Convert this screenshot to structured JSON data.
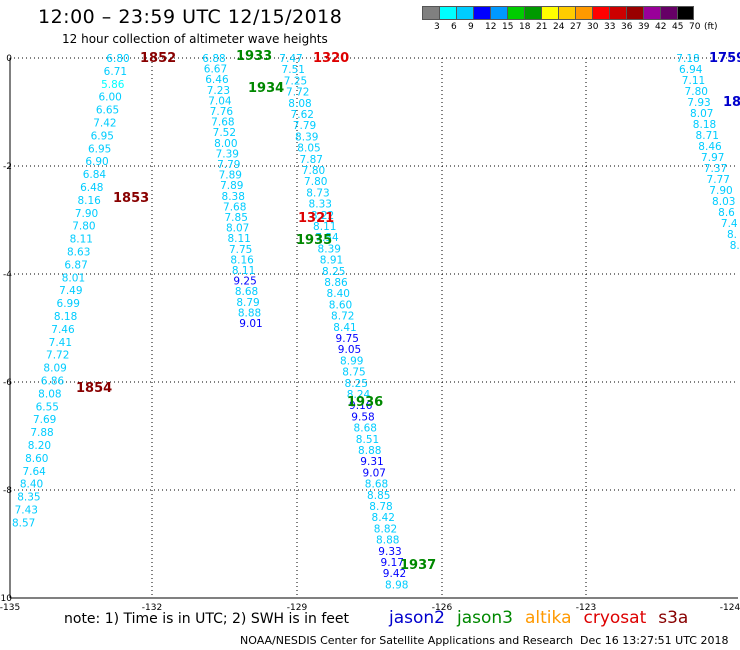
{
  "header": {
    "title": "12:00 – 23:59 UTC 12/15/2018",
    "subtitle": "12 hour collection of altimeter wave heights"
  },
  "legend": {
    "unit": "(ft)",
    "colors": [
      "#808080",
      "#00ffff",
      "#00ccff",
      "#0000ff",
      "#0099ff",
      "#00cc00",
      "#009900",
      "#ffff00",
      "#ffcc00",
      "#ff9900",
      "#ff0000",
      "#cc0000",
      "#990000",
      "#990099",
      "#660066",
      "#000000"
    ],
    "labels": [
      "3",
      "6",
      "9",
      "12",
      "15",
      "18",
      "21",
      "24",
      "27",
      "30",
      "33",
      "36",
      "39",
      "42",
      "45",
      "70"
    ]
  },
  "map": {
    "lon_range": [
      -135,
      -124
    ],
    "lat_range": [
      -10,
      0
    ],
    "x_ticks": [
      "-135",
      "-132",
      "-129",
      "-126",
      "-123",
      "-124"
    ],
    "y_ticks": [
      "0",
      "-2",
      "-4",
      "-6",
      "-8",
      "-10"
    ]
  },
  "tracks": [
    {
      "name": "track-1",
      "satellite": "jason2",
      "values": [
        "6.80",
        "6.71",
        "5.86",
        "6.00",
        "6.65",
        "7.42",
        "6.95",
        "6.95",
        "6.90",
        "6.84",
        "6.48",
        "8.16",
        "7.90",
        "7.80",
        "8.11",
        "8.63",
        "6.87",
        "8.01",
        "7.49",
        "6.99",
        "8.18",
        "7.46",
        "7.41",
        "7.72",
        "8.09",
        "6.86",
        "8.08",
        "6.55",
        "7.69",
        "7.88",
        "8.20",
        "8.60",
        "7.64",
        "8.40",
        "8.35",
        "7.43",
        "8.57"
      ]
    },
    {
      "name": "track-2",
      "satellite": "jason3",
      "values": [
        "6.88",
        "6.67",
        "6.46",
        "7.23",
        "7.04",
        "7.76",
        "7.68",
        "7.52",
        "8.00",
        "7.39",
        "7.79",
        "7.89",
        "7.89",
        "8.38",
        "7.68",
        "7.85",
        "8.07",
        "8.11",
        "7.75",
        "8.16",
        "8.11",
        "9.25",
        "8.68",
        "8.79",
        "8.88",
        "9.01"
      ]
    },
    {
      "name": "track-3",
      "satellite": "jason3",
      "values": [
        "7.47",
        "7.51",
        "7.25",
        "7.72",
        "8.08",
        "7.62",
        "7.79",
        "8.39",
        "8.05",
        "7.87",
        "7.80",
        "7.80",
        "8.73",
        "8.33",
        "8.22",
        "8.11",
        "7.54",
        "8.39",
        "8.91",
        "8.25",
        "8.86",
        "8.40",
        "8.60",
        "8.72",
        "8.41",
        "9.75",
        "9.05",
        "8.99",
        "8.75",
        "8.25",
        "8.24",
        "9.16",
        "9.58",
        "8.68",
        "8.51",
        "8.88",
        "9.31",
        "9.07",
        "8.68",
        "8.85",
        "8.78",
        "8.42",
        "8.82",
        "8.88",
        "9.33",
        "9.17",
        "9.42",
        "8.98"
      ]
    },
    {
      "name": "track-4",
      "satellite": "jason2",
      "values": [
        "7.18",
        "6.94",
        "7.11",
        "7.80",
        "7.93",
        "8.07",
        "8.18",
        "8.71",
        "8.46",
        "7.97",
        "7.37",
        "7.77",
        "7.90",
        "8.03",
        "8.6",
        "7.4",
        "8.",
        "8."
      ]
    }
  ],
  "time_labels": [
    {
      "text": "1852",
      "color": "#880000"
    },
    {
      "text": "1853",
      "color": "#880000"
    },
    {
      "text": "1854",
      "color": "#880000"
    },
    {
      "text": "1933",
      "color": "#008800"
    },
    {
      "text": "1934",
      "color": "#008800"
    },
    {
      "text": "1935",
      "color": "#008800"
    },
    {
      "text": "1936",
      "color": "#008800"
    },
    {
      "text": "1937",
      "color": "#008800"
    },
    {
      "text": "1320",
      "color": "#dd0000"
    },
    {
      "text": "1321",
      "color": "#dd0000"
    },
    {
      "text": "1759",
      "color": "#0000cc"
    },
    {
      "text": "18",
      "color": "#0000cc"
    }
  ],
  "note": "note: 1) Time is in UTC; 2) SWH is in feet",
  "satellites": [
    {
      "name": "jason2",
      "color": "#0000cc"
    },
    {
      "name": "jason3",
      "color": "#008800"
    },
    {
      "name": "altika",
      "color": "#ff9900"
    },
    {
      "name": "cryosat",
      "color": "#dd0000"
    },
    {
      "name": "s3a",
      "color": "#880000"
    }
  ],
  "footer": {
    "credit": "NOAA/NESDIS Center for Satellite Applications and Research",
    "timestamp": "Dec 16 13:27:51 UTC 2018"
  }
}
